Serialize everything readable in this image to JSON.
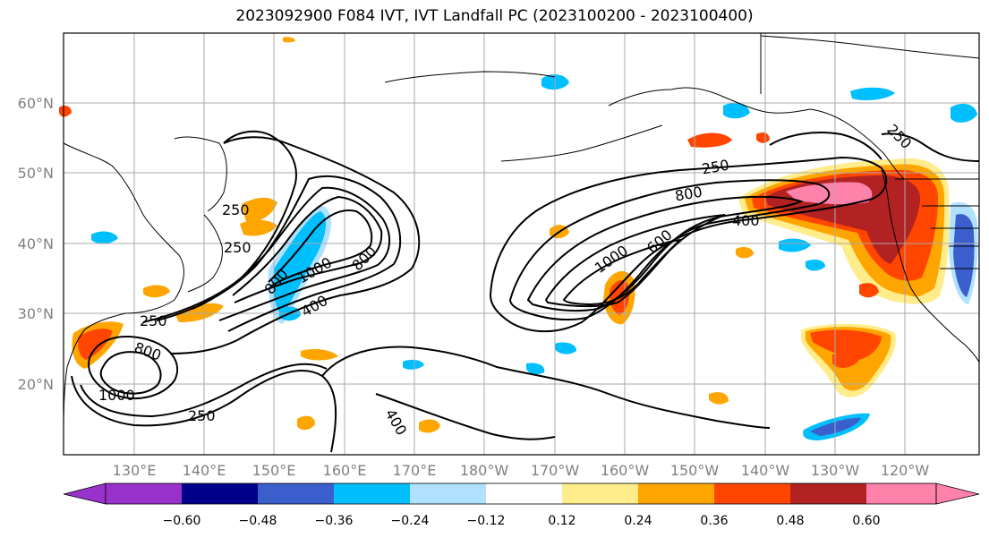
{
  "title": "2023092900 F084 IVT, IVT Landfall PC (2023100200 - 2023100400)",
  "lat_labels": [
    "60°N",
    "50°N",
    "40°N",
    "30°N",
    "20°N"
  ],
  "lat_values": [
    60,
    50,
    40,
    30,
    20
  ],
  "lon_labels": [
    "130°E",
    "140°E",
    "150°E",
    "160°E",
    "170°E",
    "180°W",
    "170°W",
    "160°W",
    "150°W",
    "140°W",
    "130°W",
    "120°W"
  ],
  "colorbar": {
    "colors": [
      "#9932CC",
      "#00008B",
      "#3A5FCD",
      "#00BFFF",
      "#B0E2FF",
      "#FFFFFF",
      "#FFEC8B",
      "#FFA500",
      "#FF4500",
      "#B22222",
      "#FF82AB"
    ],
    "tick_labels": [
      "−0.60",
      "−0.48",
      "−0.36",
      "−0.24",
      "−0.12",
      "0.12",
      "0.24",
      "0.36",
      "0.48",
      "0.60"
    ]
  },
  "contour_labels": [
    {
      "text": "250"
    },
    {
      "text": "250"
    },
    {
      "text": "800"
    },
    {
      "text": "1000"
    },
    {
      "text": "800"
    },
    {
      "text": "400"
    },
    {
      "text": "250"
    },
    {
      "text": "800"
    },
    {
      "text": "1000"
    },
    {
      "text": "250"
    },
    {
      "text": "400"
    },
    {
      "text": "250"
    },
    {
      "text": "800"
    },
    {
      "text": "400"
    },
    {
      "text": "1000"
    },
    {
      "text": "600"
    },
    {
      "text": "250"
    }
  ]
}
